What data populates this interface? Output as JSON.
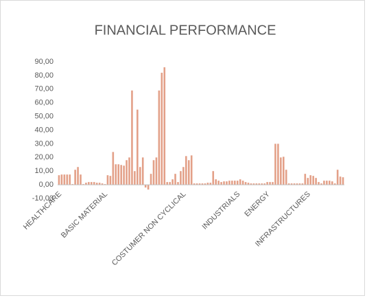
{
  "chart_data": {
    "type": "bar",
    "title": "FINANCIAL PERFORMANCE",
    "categories": [
      "HEALTHCARE",
      null,
      null,
      null,
      null,
      null,
      null,
      null,
      null,
      null,
      null,
      null,
      null,
      null,
      null,
      null,
      null,
      "BASIC MATERIAL",
      null,
      null,
      null,
      null,
      null,
      null,
      null,
      null,
      null,
      null,
      null,
      null,
      null,
      null,
      null,
      null,
      null,
      null,
      null,
      null,
      null,
      null,
      null,
      null,
      null,
      null,
      null,
      null,
      "COSTUMER NON CYCLICAL",
      null,
      null,
      null,
      null,
      null,
      null,
      null,
      null,
      null,
      null,
      null,
      null,
      null,
      null,
      null,
      null,
      null,
      null,
      null,
      "INDUSTRIALS",
      null,
      null,
      null,
      null,
      null,
      null,
      null,
      null,
      null,
      null,
      "ENERGY",
      null,
      null,
      null,
      null,
      null,
      null,
      null,
      null,
      null,
      null,
      null,
      null,
      null,
      null,
      "INFRASTRUCTURES",
      null,
      null,
      null,
      null,
      null,
      null,
      null,
      null,
      null,
      null,
      null,
      null,
      null
    ],
    "values": [
      7,
      7.5,
      7.5,
      7.5,
      7.5,
      0.5,
      11,
      13,
      7.5,
      0.5,
      1.5,
      2,
      2,
      2,
      1.5,
      1.5,
      1,
      0.5,
      7,
      6.5,
      24,
      15,
      15,
      14.5,
      14,
      18,
      20,
      69,
      10,
      55,
      13,
      20,
      -2,
      -3.5,
      8,
      18,
      20,
      69,
      82,
      86,
      2,
      2,
      4,
      8,
      2,
      10,
      13,
      21,
      18,
      21.5,
      1,
      1,
      1,
      1,
      1,
      1.5,
      1.5,
      10,
      4,
      3,
      2,
      2.5,
      2.5,
      3,
      3,
      3,
      3,
      4,
      3,
      2,
      1.5,
      1,
      1,
      1,
      1,
      1,
      1,
      2,
      2,
      2,
      30,
      30,
      20,
      20.5,
      11,
      1,
      1,
      1,
      1,
      1,
      1,
      8,
      5,
      7,
      6.5,
      5,
      2,
      1,
      3,
      3,
      3,
      2.5,
      1,
      11,
      6,
      5.5
    ],
    "color": "#e3a088",
    "ylim": [
      -10,
      90
    ],
    "yticks": [
      {
        "value": -10,
        "label": "-10,00"
      },
      {
        "value": 0,
        "label": "0,00"
      },
      {
        "value": 10,
        "label": "10,00"
      },
      {
        "value": 20,
        "label": "20,00"
      },
      {
        "value": 30,
        "label": "30,00"
      },
      {
        "value": 40,
        "label": "40,00"
      },
      {
        "value": 50,
        "label": "50,00"
      },
      {
        "value": 60,
        "label": "60,00"
      },
      {
        "value": 70,
        "label": "70,00"
      },
      {
        "value": 80,
        "label": "80,00"
      },
      {
        "value": 90,
        "label": "90,00"
      }
    ],
    "grid": false
  }
}
